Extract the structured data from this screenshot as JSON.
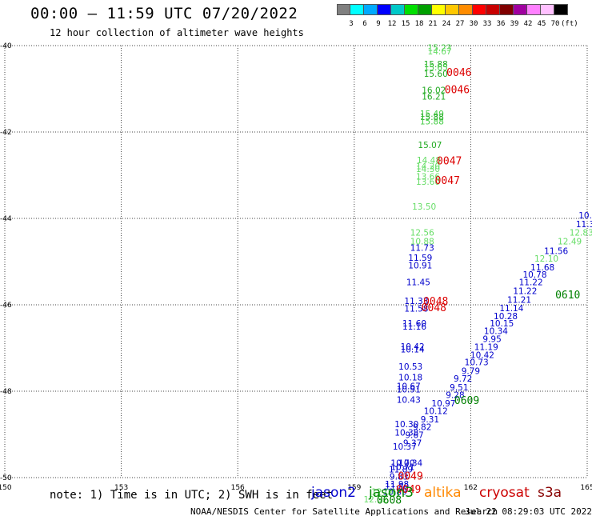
{
  "header": {
    "title": "00:00 – 11:59 UTC 07/20/2022",
    "subtitle": "12 hour collection of altimeter wave heights"
  },
  "colorbar": {
    "swatches": [
      "#808080",
      "#00ffff",
      "#00aaff",
      "#0000ff",
      "#00c8c8",
      "#00e000",
      "#00a000",
      "#ffff00",
      "#ffc800",
      "#ff8c00",
      "#ff0000",
      "#c80000",
      "#800000",
      "#a000a0",
      "#ff80ff",
      "#ffc0ff",
      "#000000"
    ],
    "labels": [
      "3",
      "6",
      "9",
      "12",
      "15",
      "18",
      "21",
      "24",
      "27",
      "30",
      "33",
      "36",
      "39",
      "42",
      "45",
      "70",
      "(ft)"
    ]
  },
  "axes": {
    "lat_labels": [
      "-40",
      "-42",
      "-44",
      "-46",
      "-48",
      "-50"
    ],
    "lon_labels": [
      "150",
      "153",
      "156",
      "159",
      "162",
      "165"
    ]
  },
  "observations": [
    {
      "v": "15.23",
      "c": "#44cc44",
      "lon": 161.2,
      "lat": -40.12
    },
    {
      "v": "14.67",
      "c": "#66dd66",
      "lon": 161.2,
      "lat": -40.2
    },
    {
      "v": "15.88",
      "c": "#22aa22",
      "lon": 161.1,
      "lat": -40.5
    },
    {
      "v": "15.65",
      "c": "#44cc44",
      "lon": 161.1,
      "lat": -40.57
    },
    {
      "v": "15.60",
      "c": "#22aa22",
      "lon": 161.1,
      "lat": -40.72
    },
    {
      "v": "16.02",
      "c": "#22aa22",
      "lon": 161.05,
      "lat": -41.1
    },
    {
      "v": "16.21",
      "c": "#22aa22",
      "lon": 161.05,
      "lat": -41.25
    },
    {
      "v": "15.49",
      "c": "#44cc44",
      "lon": 161.0,
      "lat": -41.65
    },
    {
      "v": "15.88",
      "c": "#22aa22",
      "lon": 161.0,
      "lat": -41.72
    },
    {
      "v": "15.88",
      "c": "#44cc44",
      "lon": 161.0,
      "lat": -41.82
    },
    {
      "v": "15.07",
      "c": "#22aa22",
      "lon": 160.95,
      "lat": -42.37
    },
    {
      "v": "14.48",
      "c": "#66dd66",
      "lon": 160.92,
      "lat": -42.72
    },
    {
      "v": "14.20",
      "c": "#66dd66",
      "lon": 160.9,
      "lat": -42.86
    },
    {
      "v": "14.30",
      "c": "#66dd66",
      "lon": 160.9,
      "lat": -42.93
    },
    {
      "v": "13.66",
      "c": "#66dd66",
      "lon": 160.9,
      "lat": -43.1
    },
    {
      "v": "13.60",
      "c": "#66dd66",
      "lon": 160.9,
      "lat": -43.22
    },
    {
      "v": "13.50",
      "c": "#66dd66",
      "lon": 160.8,
      "lat": -43.8
    },
    {
      "v": "12.56",
      "c": "#66dd66",
      "lon": 160.75,
      "lat": -44.4
    },
    {
      "v": "10.88",
      "c": "#66dd66",
      "lon": 160.75,
      "lat": -44.6
    },
    {
      "v": "11.73",
      "c": "#0000cc",
      "lon": 160.75,
      "lat": -44.75
    },
    {
      "v": "11.59",
      "c": "#0000cc",
      "lon": 160.7,
      "lat": -44.98
    },
    {
      "v": "10.91",
      "c": "#0000cc",
      "lon": 160.7,
      "lat": -45.16
    },
    {
      "v": "11.45",
      "c": "#0000cc",
      "lon": 160.65,
      "lat": -45.55
    },
    {
      "v": "11.33",
      "c": "#0000cc",
      "lon": 160.6,
      "lat": -45.98
    },
    {
      "v": "11.58",
      "c": "#0000cc",
      "lon": 160.6,
      "lat": -46.16
    },
    {
      "v": "11.60",
      "c": "#0000cc",
      "lon": 160.55,
      "lat": -46.5
    },
    {
      "v": "11.16",
      "c": "#0000cc",
      "lon": 160.55,
      "lat": -46.57
    },
    {
      "v": "10.42",
      "c": "#0000cc",
      "lon": 160.5,
      "lat": -47.04
    },
    {
      "v": "10.14",
      "c": "#0000cc",
      "lon": 160.5,
      "lat": -47.1
    },
    {
      "v": "10.53",
      "c": "#0000cc",
      "lon": 160.45,
      "lat": -47.5
    },
    {
      "v": "10.18",
      "c": "#0000cc",
      "lon": 160.45,
      "lat": -47.75
    },
    {
      "v": "10.67",
      "c": "#0000cc",
      "lon": 160.4,
      "lat": -47.95
    },
    {
      "v": "10.91",
      "c": "#0000cc",
      "lon": 160.4,
      "lat": -48.03
    },
    {
      "v": "10.43",
      "c": "#0000cc",
      "lon": 160.4,
      "lat": -48.27
    },
    {
      "v": "10.30",
      "c": "#0000cc",
      "lon": 160.35,
      "lat": -48.83
    },
    {
      "v": "10.38",
      "c": "#0000cc",
      "lon": 160.35,
      "lat": -49.03
    },
    {
      "v": "10.37",
      "c": "#0000cc",
      "lon": 160.3,
      "lat": -49.35
    },
    {
      "v": "10.70",
      "c": "#0000cc",
      "lon": 160.25,
      "lat": -49.73
    },
    {
      "v": "10.34",
      "c": "#0000cc",
      "lon": 160.45,
      "lat": -49.73
    },
    {
      "v": "10.71",
      "c": "#0000cc",
      "lon": 160.25,
      "lat": -49.82
    },
    {
      "v": "11.89",
      "c": "#0000cc",
      "lon": 160.2,
      "lat": -49.88
    },
    {
      "v": "9.83",
      "c": "#0000cc",
      "lon": 160.15,
      "lat": -50.05
    },
    {
      "v": "11.98",
      "c": "#0000cc",
      "lon": 160.1,
      "lat": -50.22
    },
    {
      "v": "11.80",
      "c": "#0000cc",
      "lon": 160.1,
      "lat": -50.28
    },
    {
      "v": "10.89",
      "c": "#0000cc",
      "lon": 160.05,
      "lat": -50.4
    },
    {
      "v": "12.04",
      "c": "#66dd66",
      "lon": 159.75,
      "lat": -50.4
    },
    {
      "v": "12.52",
      "c": "#66dd66",
      "lon": 159.55,
      "lat": -50.57
    },
    {
      "v": "11.56",
      "c": "#0000cc",
      "lon": 164.2,
      "lat": -44.82
    },
    {
      "v": "12.10",
      "c": "#66dd66",
      "lon": 163.95,
      "lat": -45.0
    },
    {
      "v": "11.68",
      "c": "#0000cc",
      "lon": 163.85,
      "lat": -45.2
    },
    {
      "v": "10.78",
      "c": "#0000cc",
      "lon": 163.65,
      "lat": -45.37
    },
    {
      "v": "11.22",
      "c": "#0000cc",
      "lon": 163.55,
      "lat": -45.55
    },
    {
      "v": "11.22",
      "c": "#0000cc",
      "lon": 163.4,
      "lat": -45.75
    },
    {
      "v": "11.21",
      "c": "#0000cc",
      "lon": 163.25,
      "lat": -45.95
    },
    {
      "v": "11.14",
      "c": "#0000cc",
      "lon": 163.05,
      "lat": -46.15
    },
    {
      "v": "10.28",
      "c": "#0000cc",
      "lon": 162.9,
      "lat": -46.33
    },
    {
      "v": "10.15",
      "c": "#0000cc",
      "lon": 162.8,
      "lat": -46.5
    },
    {
      "v": "10.34",
      "c": "#0000cc",
      "lon": 162.65,
      "lat": -46.68
    },
    {
      "v": "9.95",
      "c": "#0000cc",
      "lon": 162.55,
      "lat": -46.86
    },
    {
      "v": "11.19",
      "c": "#0000cc",
      "lon": 162.4,
      "lat": -47.05
    },
    {
      "v": "10.42",
      "c": "#0000cc",
      "lon": 162.3,
      "lat": -47.23
    },
    {
      "v": "10.73",
      "c": "#0000cc",
      "lon": 162.15,
      "lat": -47.4
    },
    {
      "v": "9.79",
      "c": "#0000cc",
      "lon": 162.0,
      "lat": -47.6
    },
    {
      "v": "9.72",
      "c": "#0000cc",
      "lon": 161.8,
      "lat": -47.78
    },
    {
      "v": "9.51",
      "c": "#0000cc",
      "lon": 161.7,
      "lat": -47.98
    },
    {
      "v": "9.28",
      "c": "#0000cc",
      "lon": 161.6,
      "lat": -48.16
    },
    {
      "v": "10.97",
      "c": "#0000cc",
      "lon": 161.3,
      "lat": -48.35
    },
    {
      "v": "10.12",
      "c": "#0000cc",
      "lon": 161.1,
      "lat": -48.53
    },
    {
      "v": "9.31",
      "c": "#0000cc",
      "lon": 160.95,
      "lat": -48.72
    },
    {
      "v": "9.82",
      "c": "#0000cc",
      "lon": 160.75,
      "lat": -48.9
    },
    {
      "v": "9.67",
      "c": "#0000cc",
      "lon": 160.55,
      "lat": -49.08
    },
    {
      "v": "9.37",
      "c": "#0000cc",
      "lon": 160.5,
      "lat": -49.27
    },
    {
      "v": "12.83",
      "c": "#66dd66",
      "lon": 164.85,
      "lat": -44.4
    },
    {
      "v": "12.49",
      "c": "#66dd66",
      "lon": 164.55,
      "lat": -44.6
    },
    {
      "v": "10.",
      "c": "#0000cc",
      "lon": 164.95,
      "lat": -44.0
    },
    {
      "v": "11.3",
      "c": "#0000cc",
      "lon": 164.95,
      "lat": -44.2
    }
  ],
  "time_marks": [
    {
      "t": "0046",
      "c": "#dd0000",
      "lon": 161.7,
      "lat": -40.7
    },
    {
      "t": "0046",
      "c": "#dd0000",
      "lon": 161.65,
      "lat": -41.1
    },
    {
      "t": "0047",
      "c": "#dd0000",
      "lon": 161.45,
      "lat": -42.75
    },
    {
      "t": "0047",
      "c": "#dd0000",
      "lon": 161.4,
      "lat": -43.2
    },
    {
      "t": "0048",
      "c": "#dd0000",
      "lon": 161.1,
      "lat": -46.0
    },
    {
      "t": "0048",
      "c": "#dd0000",
      "lon": 161.05,
      "lat": -46.15
    },
    {
      "t": "0049",
      "c": "#dd0000",
      "lon": 160.45,
      "lat": -50.05
    },
    {
      "t": "0049",
      "c": "#dd0000",
      "lon": 160.4,
      "lat": -50.35
    },
    {
      "t": "0608",
      "c": "#008000",
      "lon": 159.9,
      "lat": -50.6
    },
    {
      "t": "0609",
      "c": "#008000",
      "lon": 161.9,
      "lat": -48.3
    },
    {
      "t": "0610",
      "c": "#008000",
      "lon": 164.5,
      "lat": -45.85
    }
  ],
  "footer": {
    "note": "note: 1) Time is in UTC; 2) SWH is in feet",
    "satellites": [
      {
        "name": "jason2",
        "color": "#0000cc"
      },
      {
        "name": "jason3",
        "color": "#008800"
      },
      {
        "name": "altika",
        "color": "#ff8800"
      },
      {
        "name": "cryosat",
        "color": "#cc0000"
      },
      {
        "name": "s3a",
        "color": "#880000"
      }
    ],
    "credit": "NOAA/NESDIS Center for Satellite Applications and Research",
    "timestamp": "Jul 22 08:29:03 UTC 2022"
  }
}
